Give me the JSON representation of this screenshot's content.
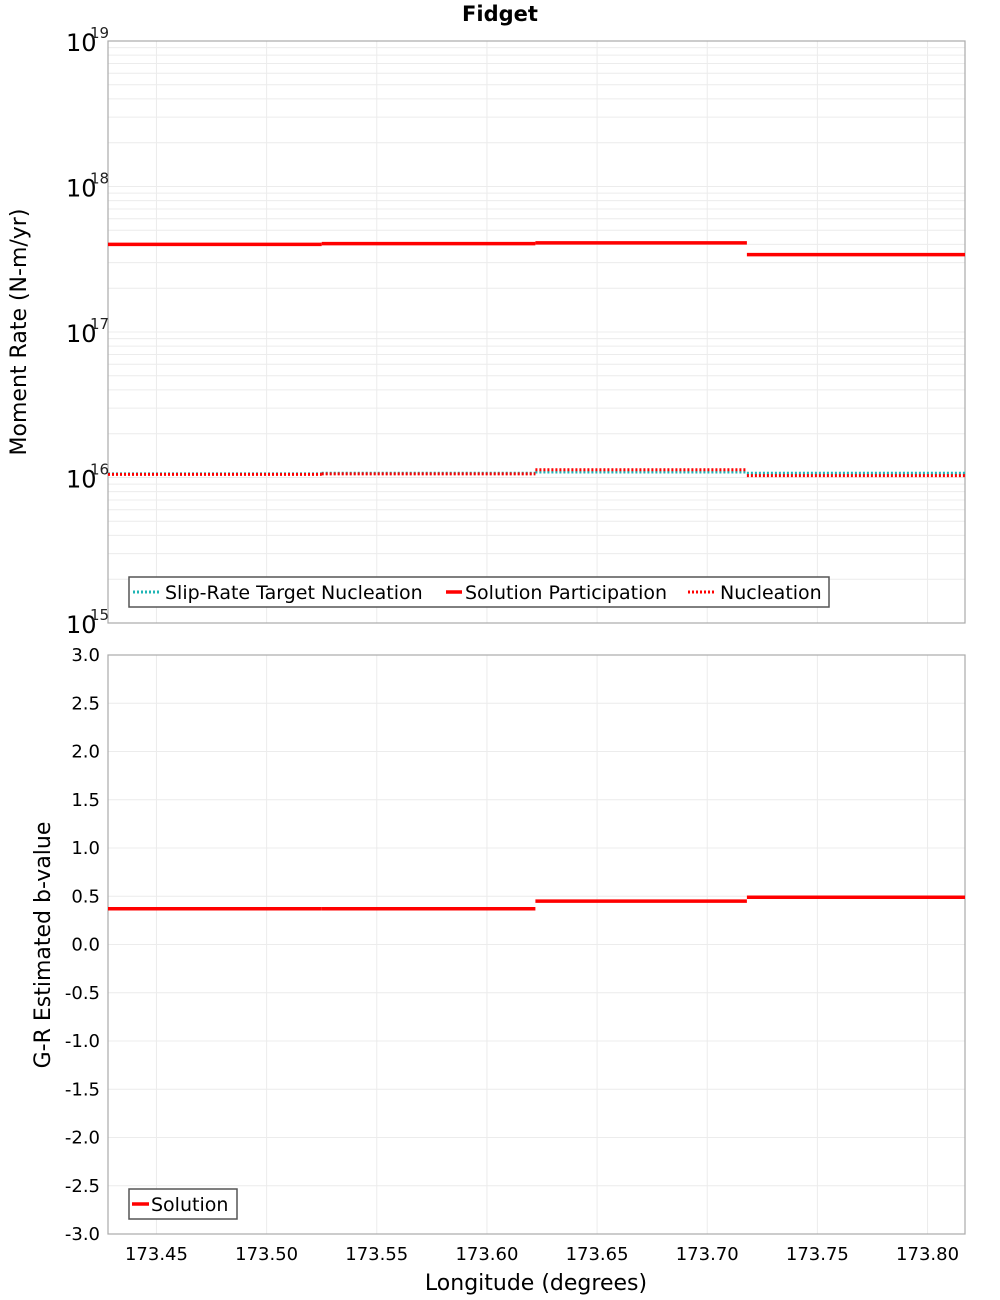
{
  "title": "Fidget",
  "chart_data": [
    {
      "type": "line",
      "subtype": "step",
      "title": "Fidget",
      "xlabel": "Longitude (degrees)",
      "ylabel": "Moment Rate (N-m/yr)",
      "yscale": "log",
      "ylim": [
        1000000000000000.0,
        1e+19
      ],
      "xlim": [
        173.428,
        173.817
      ],
      "ytick_labels": [
        "10^15",
        "10^16",
        "10^17",
        "10^18",
        "10^19"
      ],
      "grid": true,
      "legend_position": "lower-left",
      "x_breaks": [
        173.428,
        173.525,
        173.622,
        173.718,
        173.817
      ],
      "series": [
        {
          "name": "Slip-Rate Target Nucleation",
          "color": "#1fb5b5",
          "style": "dotted",
          "values": [
            1.06e+16,
            1.07e+16,
            1.09e+16,
            1.07e+16
          ]
        },
        {
          "name": "Solution Participation",
          "color": "#ff0000",
          "style": "solid",
          "values": [
            4e+17,
            4.05e+17,
            4.1e+17,
            3.4e+17
          ]
        },
        {
          "name": "Nucleation",
          "color": "#ff0000",
          "style": "dotted",
          "values": [
            1.05e+16,
            1.06e+16,
            1.13e+16,
            1.03e+16
          ]
        }
      ]
    },
    {
      "type": "line",
      "subtype": "step",
      "xlabel": "Longitude (degrees)",
      "ylabel": "G-R Estimated b-value",
      "ylim": [
        -3.0,
        3.0
      ],
      "xlim": [
        173.428,
        173.817
      ],
      "yticks": [
        "3.0",
        "2.5",
        "2.0",
        "1.5",
        "1.0",
        "0.5",
        "0.0",
        "-0.5",
        "-1.0",
        "-1.5",
        "-2.0",
        "-2.5",
        "-3.0"
      ],
      "xticks": [
        "173.45",
        "173.50",
        "173.55",
        "173.60",
        "173.65",
        "173.70",
        "173.75",
        "173.80"
      ],
      "grid": true,
      "legend_position": "lower-left",
      "x_breaks": [
        173.428,
        173.525,
        173.622,
        173.718,
        173.817
      ],
      "series": [
        {
          "name": "Solution",
          "color": "#ff0000",
          "style": "solid",
          "values": [
            0.37,
            0.37,
            0.45,
            0.49
          ]
        }
      ]
    }
  ],
  "top_plot": {
    "ylabel": "Moment Rate (N-m/yr)",
    "yticks": [
      {
        "base": "10",
        "exp": "19"
      },
      {
        "base": "10",
        "exp": "18"
      },
      {
        "base": "10",
        "exp": "17"
      },
      {
        "base": "10",
        "exp": "16"
      },
      {
        "base": "10",
        "exp": "15"
      }
    ],
    "legend": [
      "Slip-Rate Target Nucleation",
      "Solution Participation",
      "Nucleation"
    ]
  },
  "bottom_plot": {
    "ylabel": "G-R Estimated b-value",
    "yticks": [
      "3.0",
      "2.5",
      "2.0",
      "1.5",
      "1.0",
      "0.5",
      "0.0",
      "-0.5",
      "-1.0",
      "-1.5",
      "-2.0",
      "-2.5",
      "-3.0"
    ],
    "xticks": [
      "173.45",
      "173.50",
      "173.55",
      "173.60",
      "173.65",
      "173.70",
      "173.75",
      "173.80"
    ],
    "xlabel": "Longitude (degrees)",
    "legend": [
      "Solution"
    ]
  },
  "colors": {
    "solution": "#ff0000",
    "target": "#1fb5b5",
    "grid": "#e8e8e8",
    "frame": "#aaaaaa"
  }
}
